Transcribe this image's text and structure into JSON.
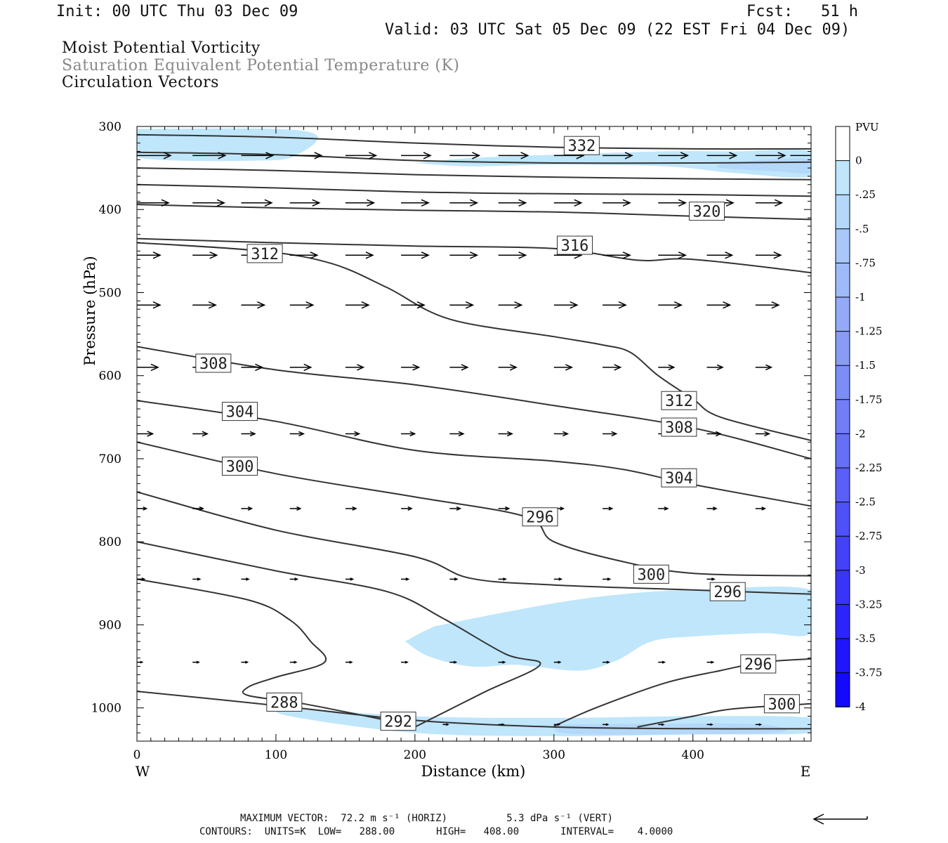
{
  "header": {
    "init": "Init: 00 UTC Thu 03 Dec 09",
    "fcst": "Fcst:   51 h",
    "valid": "Valid: 03 UTC Sat 05 Dec 09 (22 EST Fri 04 Dec 09)"
  },
  "titles": {
    "line1": "Moist Potential Vorticity",
    "line2": "Saturation Equivalent Potential Temperature (K)",
    "line3": "Circulation Vectors",
    "line2_color": "#888888"
  },
  "chart_data": {
    "type": "contour",
    "xlabel": "Distance (km)",
    "ylabel": "Pressure (hPa)",
    "xlim": [
      0,
      485
    ],
    "ylim": [
      1040,
      300
    ],
    "x_ticks": [
      0,
      100,
      200,
      300,
      400
    ],
    "y_ticks": [
      300,
      400,
      500,
      600,
      700,
      800,
      900,
      1000
    ],
    "x_end_labels": {
      "left": "W",
      "right": "E"
    },
    "colorbar": {
      "title": "PVU",
      "levels": [
        "0",
        "-.25",
        "-.5",
        "-.75",
        "-1",
        "-1.25",
        "-1.5",
        "-1.75",
        "-2",
        "-2.25",
        "-2.5",
        "-2.75",
        "-3",
        "-3.25",
        "-3.5",
        "-3.75",
        "-4"
      ],
      "colors": [
        "#ffffff",
        "#bfe6fb",
        "#b4d8fa",
        "#a9c8f9",
        "#9ebaf8",
        "#93aaf7",
        "#889cf6",
        "#7c8df6",
        "#717ef6",
        "#6670f6",
        "#5a60f7",
        "#4f51f8",
        "#4342f8",
        "#3834f9",
        "#2b25fa",
        "#1f16fb",
        "#1209fd"
      ]
    },
    "contour_labels": [
      "332",
      "320",
      "316",
      "312",
      "308",
      "312",
      "304",
      "308",
      "300",
      "296",
      "304",
      "300",
      "296",
      "296",
      "300",
      "288",
      "292"
    ],
    "contours": [
      {
        "value": 332,
        "pts": [
          [
            0,
            310
          ],
          [
            100,
            313
          ],
          [
            200,
            320
          ],
          [
            300,
            325
          ],
          [
            400,
            327
          ],
          [
            485,
            327
          ]
        ]
      },
      {
        "value": 328,
        "pts": [
          [
            0,
            331
          ],
          [
            100,
            334
          ],
          [
            200,
            341
          ],
          [
            300,
            344
          ],
          [
            400,
            344
          ],
          [
            485,
            343
          ]
        ]
      },
      {
        "value": 324,
        "pts": [
          [
            0,
            350
          ],
          [
            100,
            353
          ],
          [
            200,
            358
          ],
          [
            300,
            361
          ],
          [
            400,
            363
          ],
          [
            485,
            364
          ]
        ]
      },
      {
        "value": 320,
        "pts": [
          [
            0,
            370
          ],
          [
            100,
            374
          ],
          [
            200,
            379
          ],
          [
            300,
            381
          ],
          [
            400,
            382
          ],
          [
            485,
            384
          ]
        ]
      },
      {
        "value": 320,
        "pts": [
          [
            0,
            394
          ],
          [
            100,
            398
          ],
          [
            200,
            401
          ],
          [
            300,
            403
          ],
          [
            400,
            408
          ],
          [
            485,
            412
          ]
        ]
      },
      {
        "value": 316,
        "pts": [
          [
            0,
            435
          ],
          [
            100,
            440
          ],
          [
            200,
            444
          ],
          [
            300,
            447
          ],
          [
            360,
            461
          ],
          [
            400,
            460
          ],
          [
            485,
            476
          ]
        ]
      },
      {
        "value": 312,
        "pts": [
          [
            0,
            440
          ],
          [
            90,
            450
          ],
          [
            140,
            465
          ],
          [
            180,
            494
          ],
          [
            225,
            532
          ],
          [
            300,
            553
          ],
          [
            335,
            563
          ],
          [
            355,
            572
          ],
          [
            375,
            600
          ],
          [
            400,
            628
          ],
          [
            420,
            650
          ],
          [
            485,
            678
          ]
        ]
      },
      {
        "value": 308,
        "pts": [
          [
            0,
            565
          ],
          [
            100,
            593
          ],
          [
            200,
            611
          ],
          [
            300,
            636
          ],
          [
            400,
            663
          ],
          [
            485,
            700
          ]
        ]
      },
      {
        "value": 304,
        "pts": [
          [
            0,
            630
          ],
          [
            100,
            655
          ],
          [
            200,
            690
          ],
          [
            300,
            703
          ],
          [
            350,
            713
          ],
          [
            400,
            731
          ],
          [
            485,
            757
          ]
        ]
      },
      {
        "value": 300,
        "pts": [
          [
            0,
            680
          ],
          [
            100,
            718
          ],
          [
            200,
            746
          ],
          [
            280,
            770
          ],
          [
            300,
            800
          ],
          [
            350,
            824
          ],
          [
            400,
            838
          ],
          [
            485,
            841
          ]
        ]
      },
      {
        "value": 296,
        "pts": [
          [
            0,
            740
          ],
          [
            100,
            786
          ],
          [
            200,
            818
          ],
          [
            240,
            844
          ],
          [
            300,
            852
          ],
          [
            400,
            858
          ],
          [
            485,
            863
          ]
        ]
      },
      {
        "value": 292,
        "pts": [
          [
            0,
            800
          ],
          [
            100,
            835
          ],
          [
            180,
            860
          ],
          [
            220,
            892
          ],
          [
            265,
            935
          ],
          [
            290,
            948
          ],
          [
            250,
            981
          ],
          [
            200,
            1023
          ]
        ]
      },
      {
        "value": 288,
        "pts": [
          [
            0,
            845
          ],
          [
            80,
            870
          ],
          [
            110,
            894
          ],
          [
            125,
            920
          ],
          [
            135,
            945
          ],
          [
            100,
            963
          ],
          [
            80,
            975
          ],
          [
            80,
            985
          ],
          [
            120,
            995
          ],
          [
            180,
            1015
          ],
          [
            200,
            1022
          ]
        ]
      },
      {
        "value": 296,
        "pts": [
          [
            300,
            1022
          ],
          [
            330,
            1000
          ],
          [
            380,
            970
          ],
          [
            420,
            955
          ],
          [
            450,
            945
          ],
          [
            485,
            941
          ]
        ]
      },
      {
        "value": 300,
        "pts": [
          [
            360,
            1023
          ],
          [
            400,
            1010
          ],
          [
            430,
            1001
          ],
          [
            485,
            995
          ]
        ]
      },
      {
        "value": 288,
        "pts": [
          [
            0,
            980
          ],
          [
            100,
            997
          ],
          [
            200,
            1015
          ],
          [
            300,
            1023
          ],
          [
            400,
            1025
          ],
          [
            485,
            1025
          ]
        ]
      }
    ],
    "pv_regions": [
      {
        "value": -0.25,
        "pts": [
          [
            0,
            303
          ],
          [
            100,
            303
          ],
          [
            130,
            312
          ],
          [
            115,
            334
          ],
          [
            90,
            341
          ],
          [
            0,
            337
          ]
        ]
      },
      {
        "value": -0.25,
        "pts": [
          [
            200,
            344
          ],
          [
            240,
            338
          ],
          [
            300,
            334
          ],
          [
            380,
            330
          ],
          [
            430,
            330
          ],
          [
            485,
            330
          ],
          [
            485,
            360
          ],
          [
            430,
            356
          ],
          [
            380,
            348
          ],
          [
            300,
            346
          ],
          [
            240,
            348
          ]
        ]
      },
      {
        "value": -0.5,
        "pts": [
          [
            420,
            345
          ],
          [
            460,
            339
          ],
          [
            485,
            340
          ],
          [
            485,
            356
          ],
          [
            460,
            354
          ],
          [
            420,
            350
          ]
        ]
      },
      {
        "value": -0.25,
        "pts": [
          [
            193,
            920
          ],
          [
            210,
            905
          ],
          [
            225,
            898
          ],
          [
            300,
            874
          ],
          [
            350,
            863
          ],
          [
            400,
            858
          ],
          [
            485,
            858
          ],
          [
            485,
            910
          ],
          [
            450,
            910
          ],
          [
            400,
            914
          ],
          [
            370,
            920
          ],
          [
            345,
            943
          ],
          [
            320,
            955
          ],
          [
            285,
            950
          ],
          [
            270,
            948
          ],
          [
            240,
            950
          ],
          [
            210,
            938
          ]
        ]
      },
      {
        "value": -0.25,
        "pts": [
          [
            100,
            998
          ],
          [
            200,
            1010
          ],
          [
            300,
            1012
          ],
          [
            400,
            1010
          ],
          [
            485,
            1012
          ],
          [
            485,
            1030
          ],
          [
            400,
            1032
          ],
          [
            300,
            1034
          ],
          [
            200,
            1030
          ],
          [
            110,
            1010
          ]
        ]
      },
      {
        "value": -0.5,
        "pts": [
          [
            300,
            1020
          ],
          [
            380,
            1019
          ],
          [
            430,
            1019
          ],
          [
            460,
            1022
          ],
          [
            460,
            1030
          ],
          [
            380,
            1032
          ],
          [
            310,
            1031
          ]
        ]
      }
    ],
    "vectors": [
      {
        "p": 335,
        "x": [
          0,
          40,
          75,
          110,
          150,
          190,
          225,
          260,
          300,
          335,
          375,
          410,
          445,
          470
        ],
        "u": [
          3.2,
          3.1,
          3.0,
          3.0,
          2.9,
          2.8,
          2.8,
          2.8,
          2.8,
          2.8,
          2.8,
          2.8,
          2.8,
          2.8
        ]
      },
      {
        "p": 392,
        "x": [
          0,
          40,
          75,
          110,
          150,
          190,
          225,
          260,
          300,
          335,
          375,
          410,
          445
        ],
        "u": [
          3.0,
          3.0,
          2.9,
          2.8,
          2.7,
          2.6,
          2.6,
          2.6,
          2.6,
          2.6,
          2.6,
          2.5,
          2.5
        ]
      },
      {
        "p": 455,
        "x": [
          0,
          40,
          75,
          110,
          150,
          190,
          225,
          260,
          300,
          335,
          375,
          410,
          445
        ],
        "u": [
          2.2,
          2.3,
          2.5,
          2.6,
          2.6,
          2.6,
          2.6,
          2.6,
          2.6,
          2.6,
          2.6,
          2.4,
          2.4
        ]
      },
      {
        "p": 515,
        "x": [
          0,
          40,
          75,
          110,
          150,
          190,
          225,
          260,
          300,
          335,
          375,
          410,
          445
        ],
        "u": [
          2.2,
          2.2,
          2.2,
          2.2,
          2.2,
          2.2,
          2.2,
          2.2,
          2.2,
          2.2,
          2.2,
          2.2,
          2.2
        ]
      },
      {
        "p": 590,
        "x": [
          0,
          40,
          75,
          110,
          150,
          190,
          225,
          260,
          300,
          335,
          375,
          410,
          445
        ],
        "u": [
          2.0,
          2.0,
          2.0,
          2.0,
          1.7,
          1.7,
          1.7,
          1.7,
          1.7,
          1.7,
          1.5,
          1.5,
          1.5
        ]
      },
      {
        "p": 670,
        "x": [
          0,
          40,
          75,
          110,
          150,
          190,
          225,
          260,
          300,
          335,
          375,
          410,
          445
        ],
        "u": [
          1.5,
          1.4,
          1.3,
          1.3,
          1.3,
          1.3,
          1.3,
          1.3,
          1.3,
          1.3,
          1.3,
          1.3,
          1.3
        ]
      },
      {
        "p": 760,
        "x": [
          0,
          40,
          75,
          110,
          150,
          190,
          225,
          260,
          300,
          335,
          375,
          410,
          445
        ],
        "u": [
          0.9,
          1.0,
          1.0,
          1.0,
          1.0,
          1.0,
          1.0,
          1.0,
          0.9,
          0.9,
          0.9,
          0.9,
          0.9
        ]
      },
      {
        "p": 845,
        "x": [
          0,
          40,
          75,
          110,
          150,
          190,
          225,
          260,
          300,
          335,
          375,
          410
        ],
        "u": [
          0.7,
          0.7,
          0.7,
          0.7,
          0.7,
          0.7,
          0.7,
          0.7,
          0.7,
          0.7,
          0.7,
          0.7
        ]
      },
      {
        "p": 945,
        "x": [
          0,
          40,
          75,
          110,
          150,
          190,
          225,
          260,
          300,
          335,
          375,
          410
        ],
        "u": [
          0.5,
          0.6,
          0.6,
          0.6,
          0.6,
          0.6,
          0.6,
          0.6,
          0.6,
          0.6,
          0.6,
          0.6
        ]
      },
      {
        "p": 1020,
        "x": [
          220,
          260,
          300,
          335,
          375,
          410,
          445
        ],
        "u": [
          0.5,
          0.5,
          0.5,
          0.5,
          0.5,
          0.5,
          0.5
        ]
      }
    ]
  },
  "footer": {
    "max_vector": "MAXIMUM VECTOR:  72.2 m s⁻¹ (HORIZ)          5.3 dPa s⁻¹ (VERT)",
    "contours": "CONTOURS:  UNITS=K  LOW=   288.00       HIGH=   408.00       INTERVAL=    4.0000"
  }
}
